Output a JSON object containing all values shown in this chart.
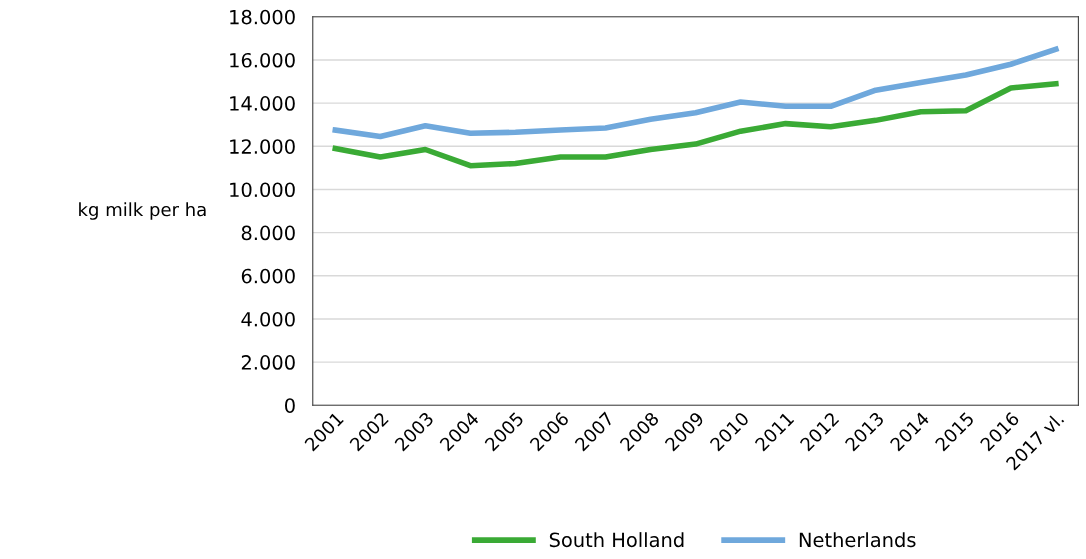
{
  "chart_data": {
    "type": "line",
    "ylabel": "kg milk per ha",
    "categories": [
      "2001",
      "2002",
      "2003",
      "2004",
      "2005",
      "2006",
      "2007",
      "2008",
      "2009",
      "2010",
      "2011",
      "2012",
      "2013",
      "2014",
      "2015",
      "2016",
      "2017 vl."
    ],
    "series": [
      {
        "name": "South Holland",
        "color": "#3aaa35",
        "values": [
          11900,
          11500,
          11850,
          11100,
          11200,
          11500,
          11500,
          11850,
          12100,
          12700,
          13050,
          12900,
          13200,
          13600,
          13650,
          14700,
          14900
        ]
      },
      {
        "name": "Netherlands",
        "color": "#6fa8dc",
        "values": [
          12750,
          12450,
          12950,
          12600,
          12650,
          12750,
          12850,
          13250,
          13550,
          14050,
          13850,
          13850,
          14600,
          14950,
          15300,
          15800,
          16500
        ]
      }
    ],
    "ylim": [
      0,
      18000
    ],
    "yticks": [
      {
        "value": 0,
        "label": "0"
      },
      {
        "value": 2000,
        "label": "2.000"
      },
      {
        "value": 4000,
        "label": "4.000"
      },
      {
        "value": 6000,
        "label": "6.000"
      },
      {
        "value": 8000,
        "label": "8.000"
      },
      {
        "value": 10000,
        "label": "10.000"
      },
      {
        "value": 12000,
        "label": "12.000"
      },
      {
        "value": 14000,
        "label": "14.000"
      },
      {
        "value": 16000,
        "label": "16.000"
      },
      {
        "value": 18000,
        "label": "18.000"
      }
    ],
    "grid": "y",
    "legend": "bottom",
    "marker": "none",
    "line_style": "solid"
  }
}
